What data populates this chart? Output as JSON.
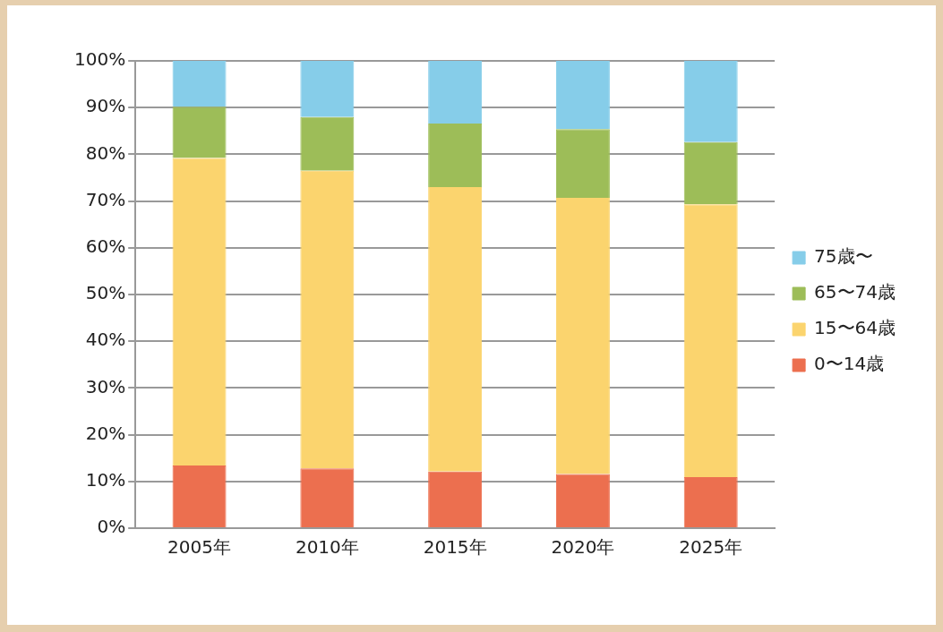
{
  "chart_data": {
    "type": "bar",
    "stacked": true,
    "categories": [
      "2005年",
      "2010年",
      "2015年",
      "2020年",
      "2025年"
    ],
    "series": [
      {
        "name": "0〜14歳",
        "color": "#ec6f4f",
        "values": [
          13.4,
          12.8,
          12.1,
          11.6,
          10.9
        ]
      },
      {
        "name": "15〜64歳",
        "color": "#fbd46e",
        "values": [
          65.8,
          63.7,
          60.9,
          59.1,
          58.4
        ]
      },
      {
        "name": "65〜74歳",
        "color": "#9dbd58",
        "values": [
          11.0,
          11.5,
          13.6,
          14.7,
          13.3
        ]
      },
      {
        "name": "75歳〜",
        "color": "#86cde9",
        "values": [
          9.8,
          12.0,
          13.4,
          14.6,
          17.4
        ]
      }
    ],
    "ylim": [
      0,
      100
    ],
    "yticks": [
      {
        "value": 0,
        "label": "0%"
      },
      {
        "value": 10,
        "label": "10%"
      },
      {
        "value": 20,
        "label": "20%"
      },
      {
        "value": 30,
        "label": "30%"
      },
      {
        "value": 40,
        "label": "40%"
      },
      {
        "value": 50,
        "label": "50%"
      },
      {
        "value": 60,
        "label": "60%"
      },
      {
        "value": 70,
        "label": "70%"
      },
      {
        "value": 80,
        "label": "80%"
      },
      {
        "value": 90,
        "label": "90%"
      },
      {
        "value": 100,
        "label": "100%"
      }
    ],
    "grid": "y",
    "legend": "right"
  }
}
